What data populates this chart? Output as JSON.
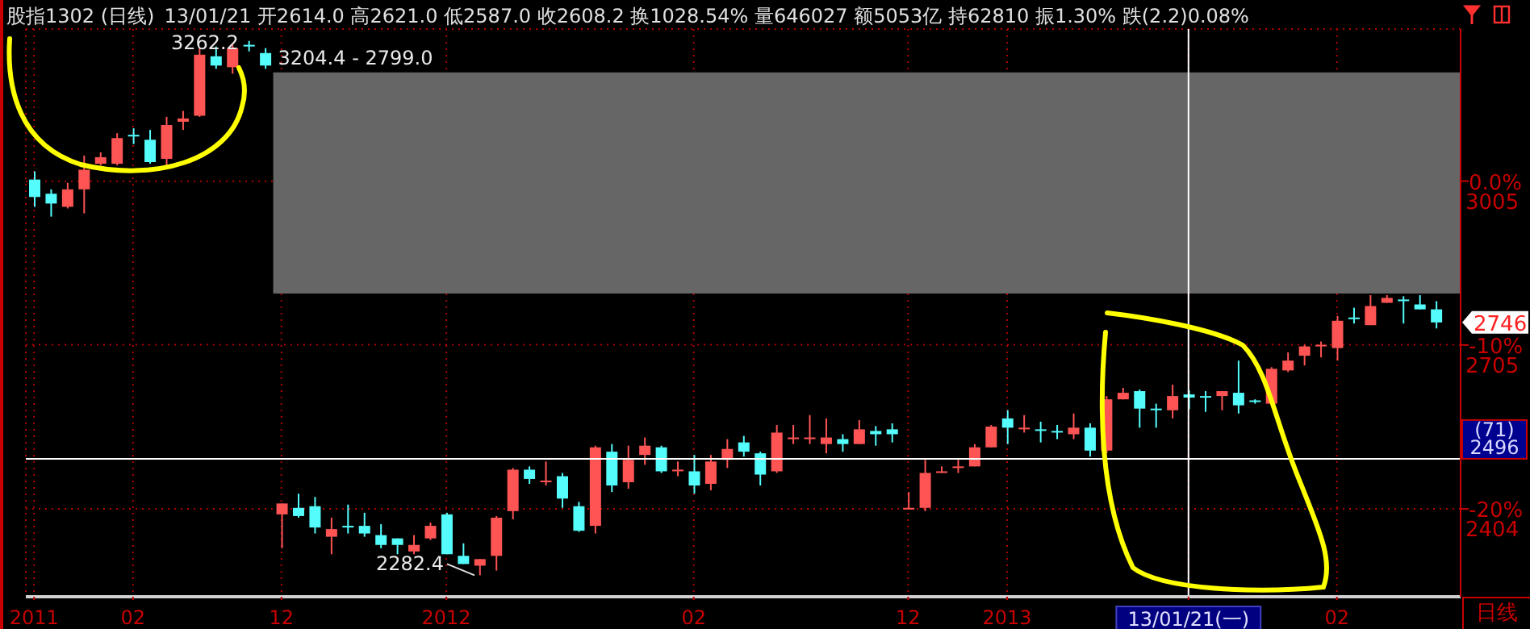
{
  "chart_data": {
    "type": "candlestick",
    "title": "股指1302 (日线)",
    "xlabel": "日线",
    "subtitle": "13/01/21 开2614.0 高2621.0 低2587.0 收2608.2 换1028.54% 量646027 额5053亿 持62810 振1.30% 跌(2.2)0.08%",
    "annotations": [
      "3262.2",
      "2282.4",
      "2746"
    ],
    "categories": [
      "2011",
      null,
      null,
      null,
      null,
      null,
      "02",
      null,
      null,
      null,
      null,
      null,
      null,
      null,
      null,
      "12",
      null,
      null,
      null,
      null,
      null,
      null,
      null,
      null,
      null,
      "2012",
      null,
      null,
      null,
      null,
      null,
      null,
      null,
      null,
      null,
      null,
      null,
      null,
      null,
      null,
      "02",
      null,
      null,
      null,
      null,
      null,
      null,
      null,
      null,
      null,
      null,
      null,
      null,
      "12",
      null,
      null,
      null,
      null,
      null,
      "2013",
      null,
      null,
      null,
      null,
      null,
      null,
      null,
      null,
      null,
      null,
      "13/01/21(一)",
      null,
      null,
      null,
      null,
      null,
      null,
      null,
      null,
      "02",
      null,
      null,
      null,
      null,
      null,
      null
    ],
    "ohlc": [
      [
        3008,
        3023,
        2958,
        2976
      ],
      [
        2982,
        2990,
        2940,
        2964
      ],
      [
        2958,
        3002,
        2955,
        2990
      ],
      [
        2990,
        3052,
        2946,
        3026
      ],
      [
        3037,
        3058,
        3034,
        3049
      ],
      [
        3037,
        3093,
        3034,
        3084
      ],
      [
        3090,
        3102,
        3073,
        3087
      ],
      [
        3081,
        3099,
        3037,
        3040
      ],
      [
        3046,
        3123,
        3034,
        3108
      ],
      [
        3114,
        3134,
        3099,
        3120
      ],
      [
        3125,
        3249,
        3123,
        3237
      ],
      [
        3234,
        3252,
        3211,
        3217
      ],
      [
        3214,
        3255,
        3202,
        3249
      ],
      [
        3255,
        3262.2,
        3243,
        3252
      ],
      [
        3240,
        3249,
        3211,
        3217
      ],
      [
        2394,
        2414,
        2332,
        2414
      ],
      [
        2406,
        2432,
        2388,
        2391
      ],
      [
        2409,
        2426,
        2359,
        2370
      ],
      [
        2353,
        2388,
        2321,
        2367
      ],
      [
        2373,
        2412,
        2359,
        2370
      ],
      [
        2373,
        2397,
        2353,
        2359
      ],
      [
        2356,
        2376,
        2332,
        2338
      ],
      [
        2350,
        2350,
        2321,
        2338
      ],
      [
        2326,
        2356,
        2321,
        2338
      ],
      [
        2350,
        2379,
        2347,
        2373
      ],
      [
        2394,
        2397,
        2321,
        2321
      ],
      [
        2318,
        2341,
        2303,
        2303
      ],
      [
        2300,
        2312,
        2282.4,
        2312
      ],
      [
        2318,
        2391,
        2291,
        2388
      ],
      [
        2400,
        2479,
        2385,
        2476
      ],
      [
        2476,
        2482,
        2450,
        2459
      ],
      [
        2453,
        2491,
        2447,
        2456
      ],
      [
        2464,
        2470,
        2406,
        2423
      ],
      [
        2409,
        2417,
        2362,
        2364
      ],
      [
        2373,
        2520,
        2359,
        2517
      ],
      [
        2509,
        2523,
        2435,
        2447
      ],
      [
        2453,
        2520,
        2441,
        2494
      ],
      [
        2503,
        2535,
        2485,
        2520
      ],
      [
        2517,
        2520,
        2470,
        2473
      ],
      [
        2476,
        2491,
        2464,
        2476
      ],
      [
        2473,
        2503,
        2432,
        2447
      ],
      [
        2450,
        2503,
        2438,
        2491
      ],
      [
        2494,
        2532,
        2479,
        2514
      ],
      [
        2526,
        2538,
        2500,
        2509
      ],
      [
        2506,
        2509,
        2447,
        2467
      ],
      [
        2473,
        2558,
        2470,
        2544
      ],
      [
        2535,
        2558,
        2523,
        2535
      ],
      [
        2535,
        2576,
        2523,
        2535
      ],
      [
        2523,
        2570,
        2506,
        2535
      ],
      [
        2532,
        2541,
        2509,
        2523
      ],
      [
        2523,
        2567,
        2523,
        2550
      ],
      [
        2547,
        2556,
        2520,
        2541
      ],
      [
        2550,
        2561,
        2526,
        2541
      ],
      [
        2403,
        2435,
        2403,
        2406
      ],
      [
        2406,
        2494,
        2400,
        2470
      ],
      [
        2473,
        2482,
        2470,
        2473
      ],
      [
        2482,
        2494,
        2470,
        2482
      ],
      [
        2482,
        2523,
        2482,
        2517
      ],
      [
        2517,
        2558,
        2517,
        2555
      ],
      [
        2570,
        2585,
        2523,
        2553
      ],
      [
        2553,
        2576,
        2544,
        2553
      ],
      [
        2550,
        2564,
        2526,
        2550
      ],
      [
        2547,
        2558,
        2532,
        2547
      ],
      [
        2541,
        2579,
        2532,
        2553
      ],
      [
        2553,
        2561,
        2500,
        2511
      ],
      [
        2511,
        2611,
        2506,
        2605
      ],
      [
        2605,
        2626,
        2605,
        2617
      ],
      [
        2620,
        2623,
        2553,
        2588
      ],
      [
        2588,
        2597,
        2553,
        2588
      ],
      [
        2585,
        2632,
        2570,
        2611
      ],
      [
        2614.0,
        2621.0,
        2587.0,
        2608.2
      ],
      [
        2611,
        2620,
        2582,
        2611
      ],
      [
        2611,
        2620,
        2585,
        2620
      ],
      [
        2617,
        2676,
        2579,
        2594
      ],
      [
        2603,
        2605,
        2597,
        2603
      ],
      [
        2597,
        2664,
        2594,
        2661
      ],
      [
        2658,
        2691,
        2655,
        2676
      ],
      [
        2685,
        2705,
        2667,
        2702
      ],
      [
        2705,
        2711,
        2682,
        2705
      ],
      [
        2699,
        2758,
        2676,
        2749
      ],
      [
        2755,
        2773,
        2744,
        2755
      ],
      [
        2741,
        2796,
        2741,
        2776
      ],
      [
        2782,
        2796,
        2782,
        2791
      ],
      [
        2788,
        2794,
        2744,
        2788
      ],
      [
        2779,
        2796,
        2770,
        2770
      ],
      [
        2770,
        2785,
        2735,
        2746
      ]
    ],
    "colors": [
      "#54fcfc",
      "#54fcfc",
      "#ff5454",
      "#ff5454",
      "#ff5454",
      "#ff5454",
      "#54fcfc",
      "#54fcfc",
      "#ff5454",
      "#ff5454",
      "#ff5454",
      "#54fcfc",
      "#ff5454",
      "#54fcfc",
      "#54fcfc",
      "#ff5454",
      "#54fcfc",
      "#54fcfc",
      "#ff5454",
      "#54fcfc",
      "#54fcfc",
      "#54fcfc",
      "#54fcfc",
      "#ff5454",
      "#ff5454",
      "#54fcfc",
      "#54fcfc",
      "#ff5454",
      "#ff5454",
      "#ff5454",
      "#54fcfc",
      "#ff5454",
      "#54fcfc",
      "#54fcfc",
      "#ff5454",
      "#54fcfc",
      "#ff5454",
      "#ff5454",
      "#54fcfc",
      "#ff5454",
      "#54fcfc",
      "#ff5454",
      "#ff5454",
      "#54fcfc",
      "#54fcfc",
      "#ff5454",
      "#ff5454",
      "#ff5454",
      "#ff5454",
      "#54fcfc",
      "#ff5454",
      "#54fcfc",
      "#54fcfc",
      "#ff5454",
      "#ff5454",
      "#ff5454",
      "#ff5454",
      "#ff5454",
      "#ff5454",
      "#54fcfc",
      "#ff5454",
      "#54fcfc",
      "#54fcfc",
      "#ff5454",
      "#54fcfc",
      "#ff5454",
      "#ff5454",
      "#54fcfc",
      "#54fcfc",
      "#ff5454",
      "#54fcfc",
      "#54fcfc",
      "#ff5454",
      "#54fcfc",
      "#54fcfc",
      "#ff5454",
      "#ff5454",
      "#ff5454",
      "#ff5454",
      "#ff5454",
      "#54fcfc",
      "#ff5454",
      "#ff5454",
      "#54fcfc",
      "#54fcfc",
      "#54fcfc"
    ],
    "ylim": [
      2243,
      3284
    ],
    "yticks": [
      3005,
      2705,
      2404
    ],
    "y2lim": [
      -25.36,
      9.28
    ],
    "y2ticks": [
      {
        "value": 0,
        "label": "0.0%"
      },
      {
        "value": -10,
        "label": "-10%"
      },
      {
        "value": -20,
        "label": "-20%"
      }
    ],
    "ref_lines": [
      {
        "axis": "y",
        "value": 2496,
        "label": "(71) 2496",
        "color": "#ffffff"
      },
      {
        "axis": "x",
        "value": "13/01/21(一)",
        "color": "#ffffff"
      }
    ],
    "bands": [
      {
        "axis": "y",
        "from": 2799.0,
        "to": 3204.4,
        "label": "3204.4 - 2799.0",
        "color": "#666666"
      }
    ],
    "grid": true
  }
}
